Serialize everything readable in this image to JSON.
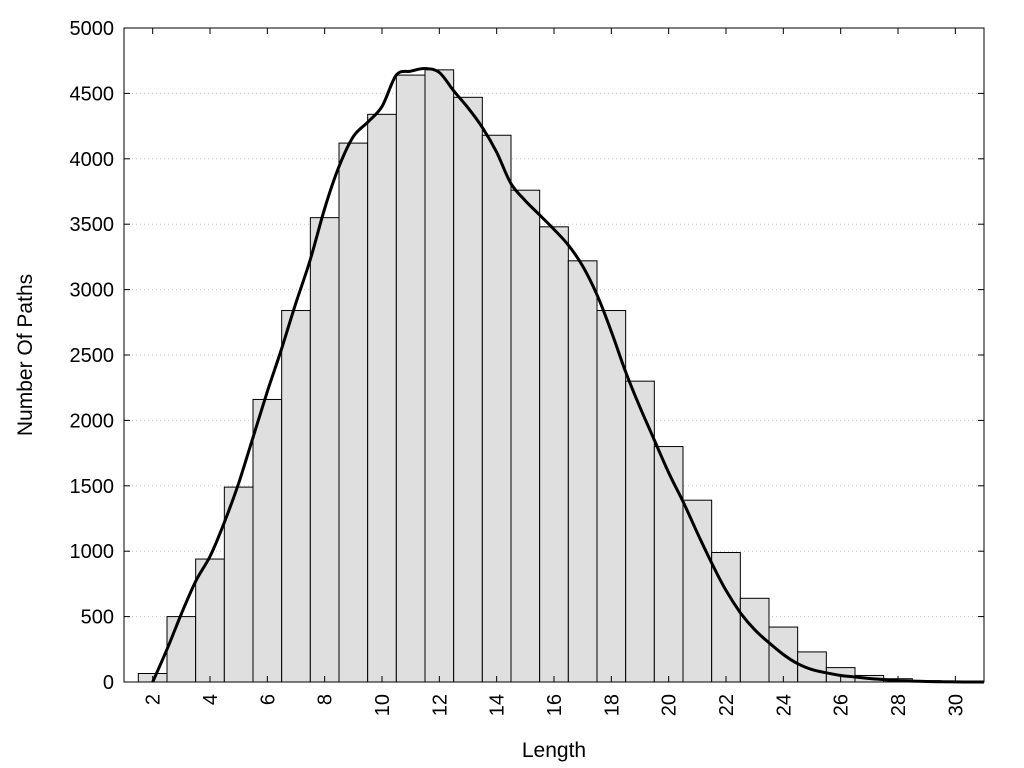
{
  "chart_data": {
    "type": "bar",
    "xlabel": "Length",
    "ylabel": "Number Of Paths",
    "xlim": [
      1,
      31
    ],
    "ylim": [
      0,
      5000
    ],
    "grid": true,
    "x_ticks": [
      "2",
      "4",
      "6",
      "8",
      "10",
      "12",
      "14",
      "16",
      "18",
      "20",
      "22",
      "24",
      "26",
      "28",
      "30"
    ],
    "y_ticks": [
      "0",
      "500",
      "1000",
      "1500",
      "2000",
      "2500",
      "3000",
      "3500",
      "4000",
      "4500",
      "5000"
    ],
    "bars": {
      "x": [
        2,
        3,
        4,
        5,
        6,
        7,
        8,
        9,
        10,
        11,
        12,
        13,
        14,
        15,
        16,
        17,
        18,
        19,
        20,
        21,
        22,
        23,
        24,
        25,
        26,
        27,
        28,
        29,
        30
      ],
      "values": [
        65,
        500,
        940,
        1490,
        2160,
        2840,
        3550,
        4120,
        4340,
        4640,
        4680,
        4470,
        4180,
        3760,
        3480,
        3220,
        2840,
        2300,
        1800,
        1390,
        990,
        640,
        420,
        230,
        110,
        50,
        25,
        10,
        5
      ]
    },
    "curve": {
      "x": [
        2.0,
        2.5,
        3.0,
        3.5,
        4.0,
        4.5,
        5.0,
        5.5,
        6.0,
        6.5,
        7.0,
        7.5,
        8.0,
        8.5,
        9.0,
        9.5,
        10.0,
        10.5,
        11.0,
        11.5,
        12.0,
        12.5,
        13.0,
        13.5,
        14.0,
        14.5,
        15.0,
        15.5,
        16.0,
        16.5,
        17.0,
        17.5,
        18.0,
        18.5,
        19.0,
        19.5,
        20.0,
        20.5,
        21.0,
        21.5,
        22.0,
        22.5,
        23.0,
        23.5,
        24.0,
        24.5,
        25.0,
        25.5,
        26.0,
        26.5,
        27.0,
        27.5,
        28.0,
        28.5,
        29.0,
        29.5,
        30.0,
        30.5,
        31.0
      ],
      "y": [
        0,
        250,
        520,
        770,
        960,
        1220,
        1520,
        1870,
        2220,
        2550,
        2900,
        3230,
        3620,
        3940,
        4170,
        4280,
        4400,
        4640,
        4670,
        4690,
        4660,
        4520,
        4390,
        4240,
        4050,
        3810,
        3680,
        3570,
        3460,
        3340,
        3180,
        2960,
        2680,
        2370,
        2100,
        1850,
        1600,
        1380,
        1140,
        910,
        700,
        530,
        400,
        300,
        210,
        140,
        95,
        70,
        50,
        38,
        27,
        18,
        11,
        7,
        4,
        2,
        1,
        0,
        0
      ]
    },
    "series": [
      {
        "name": "",
        "kind": "histogram",
        "fill": "#dfdfdf",
        "stroke": "#000000"
      },
      {
        "name": "",
        "kind": "line",
        "stroke": "#000000"
      }
    ]
  }
}
